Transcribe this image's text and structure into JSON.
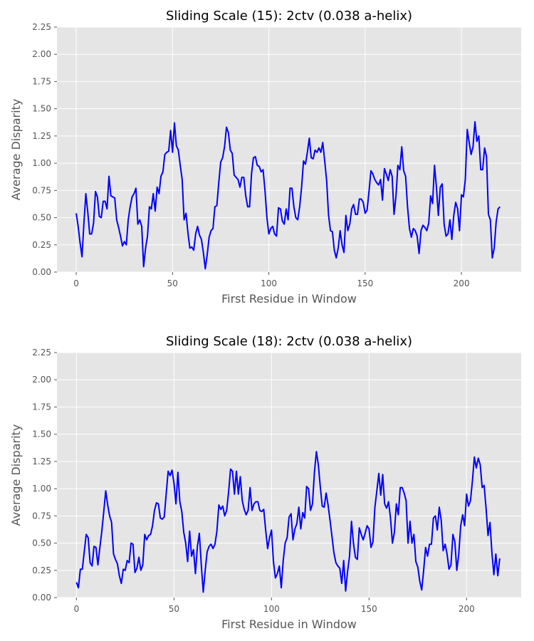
{
  "chart_data": [
    {
      "type": "line",
      "title": "Sliding Scale (15): 2ctv (0.038 a-helix)",
      "xlabel": "First Residue in Window",
      "ylabel": "Average Disparity",
      "xlim": [
        -10,
        231
      ],
      "ylim": [
        0,
        2.25
      ],
      "xticks": [
        0,
        50,
        100,
        150,
        200
      ],
      "yticks": [
        "0.00",
        "0.25",
        "0.50",
        "0.75",
        "1.00",
        "1.25",
        "1.50",
        "1.75",
        "2.00",
        "2.25"
      ],
      "grid": true,
      "line_color": "#0000ff",
      "background": "#e5e5e5",
      "x": [
        0,
        1,
        2,
        3,
        4,
        5,
        6,
        7,
        8,
        9,
        10,
        11,
        12,
        13,
        14,
        15,
        16,
        17,
        18,
        19,
        20,
        21,
        22,
        23,
        24,
        25,
        26,
        27,
        28,
        29,
        30,
        31,
        32,
        33,
        34,
        35,
        36,
        37,
        38,
        39,
        40,
        41,
        42,
        43,
        44,
        45,
        46,
        47,
        48,
        49,
        50,
        51,
        52,
        53,
        54,
        55,
        56,
        57,
        58,
        59,
        60,
        61,
        62,
        63,
        64,
        65,
        66,
        67,
        68,
        69,
        70,
        71,
        72,
        73,
        74,
        75,
        76,
        77,
        78,
        79,
        80,
        81,
        82,
        83,
        84,
        85,
        86,
        87,
        88,
        89,
        90,
        91,
        92,
        93,
        94,
        95,
        96,
        97,
        98,
        99,
        100,
        101,
        102,
        103,
        104,
        105,
        106,
        107,
        108,
        109,
        110,
        111,
        112,
        113,
        114,
        115,
        116,
        117,
        118,
        119,
        120,
        121,
        122,
        123,
        124,
        125,
        126,
        127,
        128,
        129,
        130,
        131,
        132,
        133,
        134,
        135,
        136,
        137,
        138,
        139,
        140,
        141,
        142,
        143,
        144,
        145,
        146,
        147,
        148,
        149,
        150,
        151,
        152,
        153,
        154,
        155,
        156,
        157,
        158,
        159,
        160,
        161,
        162,
        163,
        164,
        165,
        166,
        167,
        168,
        169,
        170,
        171,
        172,
        173,
        174,
        175,
        176,
        177,
        178,
        179,
        180,
        181,
        182,
        183,
        184,
        185,
        186,
        187,
        188,
        189,
        190,
        191,
        192,
        193,
        194,
        195,
        196,
        197,
        198,
        199,
        200,
        201,
        202,
        203,
        204,
        205,
        206,
        207,
        208,
        209,
        210,
        211,
        212,
        213,
        214,
        215,
        216,
        217,
        218,
        219,
        220
      ],
      "series": [
        {
          "values": [
            0.54,
            0.42,
            0.27,
            0.14,
            0.45,
            0.72,
            0.55,
            0.35,
            0.35,
            0.45,
            0.74,
            0.69,
            0.51,
            0.5,
            0.65,
            0.65,
            0.58,
            0.88,
            0.7,
            0.69,
            0.68,
            0.48,
            0.41,
            0.33,
            0.24,
            0.28,
            0.25,
            0.48,
            0.6,
            0.69,
            0.72,
            0.77,
            0.44,
            0.48,
            0.42,
            0.05,
            0.22,
            0.33,
            0.6,
            0.58,
            0.72,
            0.56,
            0.78,
            0.72,
            0.88,
            0.92,
            1.08,
            1.1,
            1.11,
            1.3,
            1.1,
            1.37,
            1.16,
            1.12,
            0.98,
            0.85,
            0.48,
            0.54,
            0.36,
            0.22,
            0.23,
            0.2,
            0.35,
            0.42,
            0.34,
            0.3,
            0.18,
            0.03,
            0.16,
            0.32,
            0.38,
            0.4,
            0.6,
            0.61,
            0.82,
            1.01,
            1.05,
            1.15,
            1.33,
            1.28,
            1.12,
            1.09,
            0.89,
            0.87,
            0.85,
            0.78,
            0.87,
            0.87,
            0.7,
            0.6,
            0.6,
            0.9,
            1.05,
            1.06,
            0.98,
            0.97,
            0.92,
            0.94,
            0.75,
            0.5,
            0.35,
            0.4,
            0.42,
            0.35,
            0.33,
            0.59,
            0.58,
            0.47,
            0.44,
            0.58,
            0.48,
            0.77,
            0.77,
            0.6,
            0.5,
            0.48,
            0.6,
            0.78,
            1.02,
            0.99,
            1.1,
            1.23,
            1.05,
            1.04,
            1.12,
            1.1,
            1.14,
            1.1,
            1.19,
            1.02,
            0.84,
            0.52,
            0.38,
            0.37,
            0.2,
            0.13,
            0.22,
            0.38,
            0.25,
            0.18,
            0.52,
            0.38,
            0.44,
            0.58,
            0.62,
            0.53,
            0.53,
            0.67,
            0.67,
            0.64,
            0.54,
            0.57,
            0.74,
            0.93,
            0.9,
            0.85,
            0.82,
            0.8,
            0.85,
            0.66,
            0.95,
            0.9,
            0.84,
            0.94,
            0.88,
            0.53,
            0.7,
            0.98,
            0.94,
            1.15,
            0.93,
            0.88,
            0.6,
            0.4,
            0.32,
            0.4,
            0.38,
            0.33,
            0.17,
            0.38,
            0.43,
            0.41,
            0.38,
            0.45,
            0.7,
            0.63,
            0.98,
            0.78,
            0.52,
            0.78,
            0.81,
            0.44,
            0.33,
            0.35,
            0.48,
            0.3,
            0.52,
            0.64,
            0.58,
            0.38,
            0.71,
            0.69,
            0.85,
            1.31,
            1.19,
            1.08,
            1.15,
            1.38,
            1.2,
            1.25,
            0.94,
            0.94,
            1.14,
            1.06,
            0.53,
            0.48,
            0.13,
            0.22,
            0.46,
            0.58,
            0.6
          ]
        }
      ]
    },
    {
      "type": "line",
      "title": "Sliding Scale (18): 2ctv (0.038 a-helix)",
      "xlabel": "First Residue in Window",
      "ylabel": "Average Disparity",
      "xlim": [
        -10,
        228
      ],
      "ylim": [
        0,
        2.25
      ],
      "xticks": [
        0,
        50,
        100,
        150,
        200
      ],
      "yticks": [
        "0.00",
        "0.25",
        "0.50",
        "0.75",
        "1.00",
        "1.25",
        "1.50",
        "1.75",
        "2.00",
        "2.25"
      ],
      "grid": true,
      "line_color": "#0000ff",
      "background": "#e5e5e5",
      "x": [
        0,
        1,
        2,
        3,
        4,
        5,
        6,
        7,
        8,
        9,
        10,
        11,
        12,
        13,
        14,
        15,
        16,
        17,
        18,
        19,
        20,
        21,
        22,
        23,
        24,
        25,
        26,
        27,
        28,
        29,
        30,
        31,
        32,
        33,
        34,
        35,
        36,
        37,
        38,
        39,
        40,
        41,
        42,
        43,
        44,
        45,
        46,
        47,
        48,
        49,
        50,
        51,
        52,
        53,
        54,
        55,
        56,
        57,
        58,
        59,
        60,
        61,
        62,
        63,
        64,
        65,
        66,
        67,
        68,
        69,
        70,
        71,
        72,
        73,
        74,
        75,
        76,
        77,
        78,
        79,
        80,
        81,
        82,
        83,
        84,
        85,
        86,
        87,
        88,
        89,
        90,
        91,
        92,
        93,
        94,
        95,
        96,
        97,
        98,
        99,
        100,
        101,
        102,
        103,
        104,
        105,
        106,
        107,
        108,
        109,
        110,
        111,
        112,
        113,
        114,
        115,
        116,
        117,
        118,
        119,
        120,
        121,
        122,
        123,
        124,
        125,
        126,
        127,
        128,
        129,
        130,
        131,
        132,
        133,
        134,
        135,
        136,
        137,
        138,
        139,
        140,
        141,
        142,
        143,
        144,
        145,
        146,
        147,
        148,
        149,
        150,
        151,
        152,
        153,
        154,
        155,
        156,
        157,
        158,
        159,
        160,
        161,
        162,
        163,
        164,
        165,
        166,
        167,
        168,
        169,
        170,
        171,
        172,
        173,
        174,
        175,
        176,
        177,
        178,
        179,
        180,
        181,
        182,
        183,
        184,
        185,
        186,
        187,
        188,
        189,
        190,
        191,
        192,
        193,
        194,
        195,
        196,
        197,
        198,
        199,
        200,
        201,
        202,
        203,
        204,
        205,
        206,
        207,
        208,
        209,
        210,
        211,
        212,
        213,
        214,
        215,
        216,
        217
      ],
      "series": [
        {
          "values": [
            0.14,
            0.09,
            0.26,
            0.26,
            0.42,
            0.58,
            0.55,
            0.32,
            0.29,
            0.47,
            0.46,
            0.3,
            0.46,
            0.61,
            0.79,
            0.98,
            0.85,
            0.75,
            0.69,
            0.4,
            0.35,
            0.31,
            0.2,
            0.13,
            0.26,
            0.25,
            0.34,
            0.32,
            0.5,
            0.49,
            0.23,
            0.27,
            0.37,
            0.25,
            0.3,
            0.58,
            0.53,
            0.57,
            0.58,
            0.66,
            0.8,
            0.87,
            0.86,
            0.73,
            0.72,
            0.74,
            0.95,
            1.16,
            1.12,
            1.17,
            1.05,
            0.86,
            1.15,
            0.88,
            0.79,
            0.6,
            0.5,
            0.33,
            0.61,
            0.38,
            0.44,
            0.22,
            0.47,
            0.59,
            0.3,
            0.05,
            0.25,
            0.42,
            0.47,
            0.49,
            0.45,
            0.49,
            0.61,
            0.85,
            0.81,
            0.84,
            0.75,
            0.8,
            0.97,
            1.18,
            1.16,
            0.95,
            1.16,
            0.95,
            1.11,
            0.89,
            0.81,
            0.76,
            0.8,
            1.01,
            0.8,
            0.86,
            0.88,
            0.88,
            0.8,
            0.79,
            0.81,
            0.62,
            0.45,
            0.55,
            0.62,
            0.33,
            0.18,
            0.22,
            0.29,
            0.09,
            0.34,
            0.5,
            0.55,
            0.74,
            0.77,
            0.53,
            0.63,
            0.68,
            0.83,
            0.63,
            0.78,
            0.73,
            1.02,
            1.0,
            0.8,
            0.86,
            1.15,
            1.34,
            1.22,
            1.02,
            0.84,
            0.83,
            0.96,
            0.85,
            0.71,
            0.56,
            0.41,
            0.32,
            0.29,
            0.27,
            0.13,
            0.34,
            0.06,
            0.24,
            0.38,
            0.7,
            0.5,
            0.37,
            0.35,
            0.64,
            0.58,
            0.53,
            0.59,
            0.66,
            0.63,
            0.46,
            0.51,
            0.83,
            0.98,
            1.14,
            0.94,
            1.13,
            0.86,
            0.82,
            0.88,
            0.73,
            0.5,
            0.6,
            0.86,
            0.76,
            1.01,
            1.01,
            0.96,
            0.89,
            0.5,
            0.7,
            0.5,
            0.58,
            0.33,
            0.28,
            0.15,
            0.07,
            0.25,
            0.46,
            0.38,
            0.49,
            0.49,
            0.73,
            0.75,
            0.62,
            0.83,
            0.71,
            0.43,
            0.49,
            0.4,
            0.26,
            0.3,
            0.58,
            0.51,
            0.25,
            0.4,
            0.66,
            0.76,
            0.66,
            0.95,
            0.84,
            0.89,
            1.07,
            1.29,
            1.19,
            1.28,
            1.22,
            1.01,
            1.03,
            0.82,
            0.57,
            0.69,
            0.41,
            0.21,
            0.4,
            0.2,
            0.36
          ]
        }
      ]
    }
  ]
}
